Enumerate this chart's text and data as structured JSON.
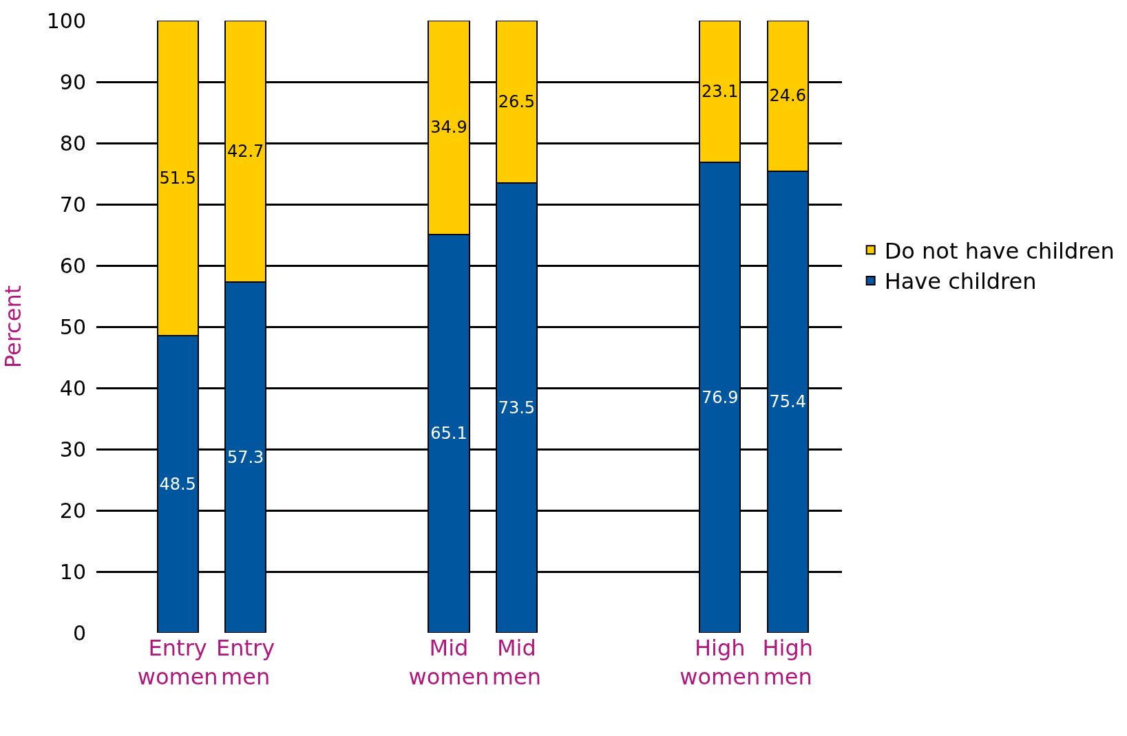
{
  "chart_data": {
    "type": "bar",
    "stacked": true,
    "ylabel": "Percent",
    "categories": [
      "Entry women",
      "Entry men",
      null,
      null,
      "Mid women",
      "Mid men",
      null,
      null,
      "High women",
      "High men"
    ],
    "series": [
      {
        "name": "Have children",
        "color": "#0057a0",
        "values": [
          48.5,
          57.3,
          null,
          null,
          65.1,
          73.5,
          null,
          null,
          76.9,
          75.4
        ]
      },
      {
        "name": "Do not have children",
        "color": "#ffcc00",
        "values": [
          51.5,
          42.7,
          null,
          null,
          34.9,
          26.5,
          null,
          null,
          23.1,
          24.6
        ]
      }
    ],
    "ylim": [
      0,
      100
    ],
    "yticks": [
      0,
      10,
      20,
      30,
      40,
      50,
      60,
      70,
      80,
      90,
      100
    ],
    "grid": "y",
    "legend": "right",
    "data_labels": true
  }
}
